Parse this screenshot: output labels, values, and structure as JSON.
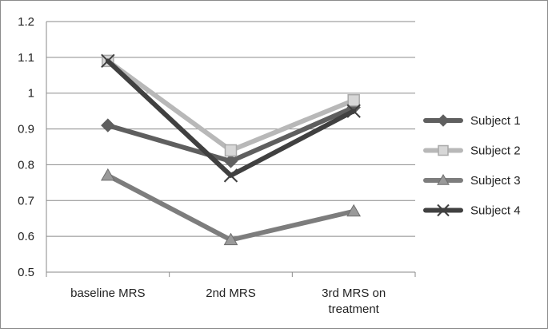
{
  "chart_data": {
    "type": "line",
    "title": "",
    "xlabel": "",
    "ylabel": "",
    "categories": [
      "baseline MRS",
      "2nd MRS",
      "3rd MRS on treatment"
    ],
    "category_lines": [
      [
        "baseline MRS"
      ],
      [
        "2nd MRS"
      ],
      [
        "3rd MRS on",
        "treatment"
      ]
    ],
    "ylim": [
      0.5,
      1.2
    ],
    "yticks": [
      0.5,
      0.6,
      0.7,
      0.8,
      0.9,
      1,
      1.1,
      1.2
    ],
    "ytick_labels": [
      "0.5",
      "0.6",
      "0.7",
      "0.8",
      "0.9",
      "1",
      "1.1",
      "1.2"
    ],
    "grid": true,
    "legend_position": "right",
    "series": [
      {
        "name": "Subject 1",
        "values": [
          0.91,
          0.81,
          0.96
        ],
        "color": "#5f5f5f",
        "marker": "diamond"
      },
      {
        "name": "Subject 2",
        "values": [
          1.09,
          0.84,
          0.98
        ],
        "color": "#b8b8b8",
        "marker": "square"
      },
      {
        "name": "Subject 3",
        "values": [
          0.77,
          0.59,
          0.67
        ],
        "color": "#7d7d7d",
        "marker": "triangle"
      },
      {
        "name": "Subject 4",
        "values": [
          1.09,
          0.77,
          0.95
        ],
        "color": "#404040",
        "marker": "x"
      }
    ]
  }
}
